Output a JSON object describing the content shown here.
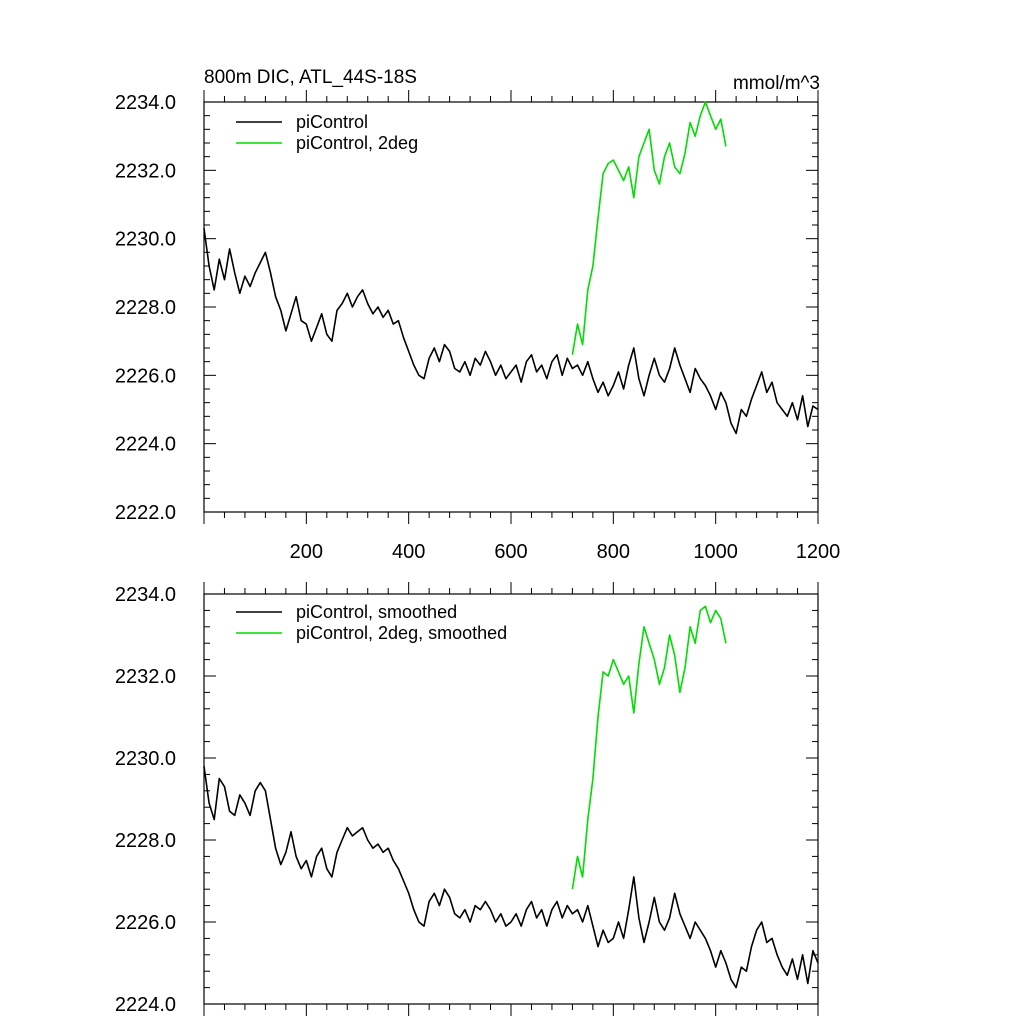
{
  "chart_data": [
    {
      "type": "line",
      "title": "800m DIC, ATL_44S-18S",
      "units": "mmol/m^3",
      "xlim": [
        0,
        1200
      ],
      "ylim": [
        2222,
        2234
      ],
      "xticks": [
        200,
        400,
        600,
        800,
        1000,
        1200
      ],
      "xtick_labels": [
        "200",
        "400",
        "600",
        "800",
        "1000",
        "1200"
      ],
      "yticks": [
        2222,
        2224,
        2226,
        2228,
        2230,
        2232,
        2234
      ],
      "ytick_labels": [
        "2222.0",
        "2224.0",
        "2226.0",
        "2228.0",
        "2230.0",
        "2232.0",
        "2234.0"
      ],
      "legend_placement": "top-left",
      "grid": false,
      "series": [
        {
          "name": "piControl",
          "color": "#000000",
          "x": [
            0,
            10,
            20,
            30,
            40,
            50,
            60,
            70,
            80,
            90,
            100,
            110,
            120,
            130,
            140,
            150,
            160,
            170,
            180,
            190,
            200,
            210,
            220,
            230,
            240,
            250,
            260,
            270,
            280,
            290,
            300,
            310,
            320,
            330,
            340,
            350,
            360,
            370,
            380,
            390,
            400,
            410,
            420,
            430,
            440,
            450,
            460,
            470,
            480,
            490,
            500,
            510,
            520,
            530,
            540,
            550,
            560,
            570,
            580,
            590,
            600,
            610,
            620,
            630,
            640,
            650,
            660,
            670,
            680,
            690,
            700,
            710,
            720,
            730,
            740,
            750,
            760,
            770,
            780,
            790,
            800,
            810,
            820,
            830,
            840,
            850,
            860,
            870,
            880,
            890,
            900,
            910,
            920,
            930,
            940,
            950,
            960,
            970,
            980,
            990,
            1000,
            1010,
            1020,
            1030,
            1040,
            1050,
            1060,
            1070,
            1080,
            1090,
            1100,
            1110,
            1120,
            1130,
            1140,
            1150,
            1160,
            1170,
            1180,
            1190,
            1200
          ],
          "y": [
            2230.3,
            2229.2,
            2228.5,
            2229.4,
            2228.8,
            2229.7,
            2229.0,
            2228.4,
            2228.9,
            2228.6,
            2229.0,
            2229.3,
            2229.6,
            2229.0,
            2228.3,
            2227.9,
            2227.3,
            2227.8,
            2228.3,
            2227.6,
            2227.5,
            2227.0,
            2227.4,
            2227.8,
            2227.2,
            2227.0,
            2227.9,
            2228.1,
            2228.4,
            2228.0,
            2228.3,
            2228.5,
            2228.1,
            2227.8,
            2228.0,
            2227.7,
            2227.9,
            2227.5,
            2227.6,
            2227.1,
            2226.7,
            2226.3,
            2226.0,
            2225.9,
            2226.5,
            2226.8,
            2226.4,
            2226.9,
            2226.7,
            2226.2,
            2226.1,
            2226.4,
            2226.0,
            2226.5,
            2226.3,
            2226.7,
            2226.4,
            2226.0,
            2226.3,
            2225.9,
            2226.1,
            2226.3,
            2225.8,
            2226.4,
            2226.6,
            2226.1,
            2226.3,
            2225.9,
            2226.4,
            2226.6,
            2226.0,
            2226.5,
            2226.2,
            2226.3,
            2226.0,
            2226.4,
            2225.9,
            2225.5,
            2225.8,
            2225.4,
            2225.7,
            2226.1,
            2225.6,
            2226.3,
            2226.8,
            2225.9,
            2225.4,
            2226.0,
            2226.5,
            2226.0,
            2225.8,
            2226.2,
            2226.8,
            2226.3,
            2225.9,
            2225.5,
            2226.2,
            2225.9,
            2225.7,
            2225.4,
            2225.0,
            2225.5,
            2225.2,
            2224.6,
            2224.3,
            2225.0,
            2224.8,
            2225.3,
            2225.7,
            2226.1,
            2225.5,
            2225.8,
            2225.2,
            2225.0,
            2224.8,
            2225.2,
            2224.7,
            2225.4,
            2224.5,
            2225.1,
            2225.0
          ]
        },
        {
          "name": "piControl, 2deg",
          "color": "#00dd00",
          "x": [
            720,
            730,
            740,
            750,
            760,
            770,
            780,
            790,
            800,
            810,
            820,
            830,
            840,
            850,
            860,
            870,
            880,
            890,
            900,
            910,
            920,
            930,
            940,
            950,
            960,
            970,
            980,
            990,
            1000,
            1010,
            1020
          ],
          "y": [
            2226.6,
            2227.5,
            2226.9,
            2228.5,
            2229.2,
            2230.6,
            2231.9,
            2232.2,
            2232.3,
            2232.0,
            2231.7,
            2232.1,
            2231.2,
            2232.4,
            2232.8,
            2233.2,
            2232.0,
            2231.6,
            2232.4,
            2232.8,
            2232.1,
            2231.9,
            2232.5,
            2233.4,
            2233.0,
            2233.6,
            2234.0,
            2233.6,
            2233.2,
            2233.5,
            2232.7
          ]
        }
      ]
    },
    {
      "type": "line",
      "xlim": [
        0,
        1200
      ],
      "ylim": [
        2224,
        2234
      ],
      "xticks": [
        200,
        400,
        600,
        800,
        1000,
        1200
      ],
      "yticks": [
        2224,
        2226,
        2228,
        2230,
        2232,
        2234
      ],
      "ytick_labels": [
        "2224.0",
        "2226.0",
        "2228.0",
        "2230.0",
        "2232.0",
        "2234.0"
      ],
      "legend_placement": "top-left",
      "grid": false,
      "series": [
        {
          "name": "piControl, smoothed",
          "color": "#000000",
          "x": [
            0,
            10,
            20,
            30,
            40,
            50,
            60,
            70,
            80,
            90,
            100,
            110,
            120,
            130,
            140,
            150,
            160,
            170,
            180,
            190,
            200,
            210,
            220,
            230,
            240,
            250,
            260,
            270,
            280,
            290,
            300,
            310,
            320,
            330,
            340,
            350,
            360,
            370,
            380,
            390,
            400,
            410,
            420,
            430,
            440,
            450,
            460,
            470,
            480,
            490,
            500,
            510,
            520,
            530,
            540,
            550,
            560,
            570,
            580,
            590,
            600,
            610,
            620,
            630,
            640,
            650,
            660,
            670,
            680,
            690,
            700,
            710,
            720,
            730,
            740,
            750,
            760,
            770,
            780,
            790,
            800,
            810,
            820,
            830,
            840,
            850,
            860,
            870,
            880,
            890,
            900,
            910,
            920,
            930,
            940,
            950,
            960,
            970,
            980,
            990,
            1000,
            1010,
            1020,
            1030,
            1040,
            1050,
            1060,
            1070,
            1080,
            1090,
            1100,
            1110,
            1120,
            1130,
            1140,
            1150,
            1160,
            1170,
            1180,
            1190,
            1200
          ],
          "y": [
            2229.8,
            2228.9,
            2228.5,
            2229.5,
            2229.3,
            2228.7,
            2228.6,
            2229.1,
            2228.9,
            2228.6,
            2229.2,
            2229.4,
            2229.2,
            2228.5,
            2227.8,
            2227.4,
            2227.7,
            2228.2,
            2227.6,
            2227.3,
            2227.5,
            2227.1,
            2227.6,
            2227.8,
            2227.3,
            2227.1,
            2227.7,
            2228.0,
            2228.3,
            2228.1,
            2228.2,
            2228.3,
            2228.0,
            2227.8,
            2227.9,
            2227.7,
            2227.8,
            2227.5,
            2227.3,
            2227.0,
            2226.7,
            2226.3,
            2226.0,
            2225.9,
            2226.5,
            2226.7,
            2226.4,
            2226.8,
            2226.6,
            2226.2,
            2226.1,
            2226.3,
            2226.0,
            2226.4,
            2226.3,
            2226.5,
            2226.3,
            2226.0,
            2226.2,
            2225.9,
            2226.0,
            2226.2,
            2225.9,
            2226.3,
            2226.5,
            2226.1,
            2226.3,
            2225.9,
            2226.3,
            2226.5,
            2226.1,
            2226.4,
            2226.2,
            2226.3,
            2226.0,
            2226.4,
            2225.9,
            2225.4,
            2225.8,
            2225.5,
            2225.6,
            2226.0,
            2225.6,
            2226.3,
            2227.1,
            2226.1,
            2225.5,
            2226.0,
            2226.6,
            2226.0,
            2225.8,
            2226.1,
            2226.7,
            2226.2,
            2225.9,
            2225.6,
            2226.0,
            2225.8,
            2225.6,
            2225.3,
            2224.9,
            2225.3,
            2225.0,
            2224.6,
            2224.4,
            2224.9,
            2224.8,
            2225.4,
            2225.8,
            2226.0,
            2225.5,
            2225.6,
            2225.2,
            2224.9,
            2224.7,
            2225.1,
            2224.6,
            2225.2,
            2224.5,
            2225.3,
            2225.0
          ]
        },
        {
          "name": "piControl, 2deg, smoothed",
          "color": "#00dd00",
          "x": [
            720,
            730,
            740,
            750,
            760,
            770,
            780,
            790,
            800,
            810,
            820,
            830,
            840,
            850,
            860,
            870,
            880,
            890,
            900,
            910,
            920,
            930,
            940,
            950,
            960,
            970,
            980,
            990,
            1000,
            1010,
            1020
          ],
          "y": [
            2226.8,
            2227.6,
            2227.1,
            2228.5,
            2229.5,
            2231.0,
            2232.1,
            2232.0,
            2232.4,
            2232.1,
            2231.8,
            2232.0,
            2231.1,
            2232.3,
            2233.2,
            2232.8,
            2232.4,
            2231.8,
            2232.2,
            2233.0,
            2232.5,
            2231.6,
            2232.2,
            2233.2,
            2232.8,
            2233.6,
            2233.7,
            2233.3,
            2233.6,
            2233.4,
            2232.8
          ]
        }
      ]
    }
  ]
}
